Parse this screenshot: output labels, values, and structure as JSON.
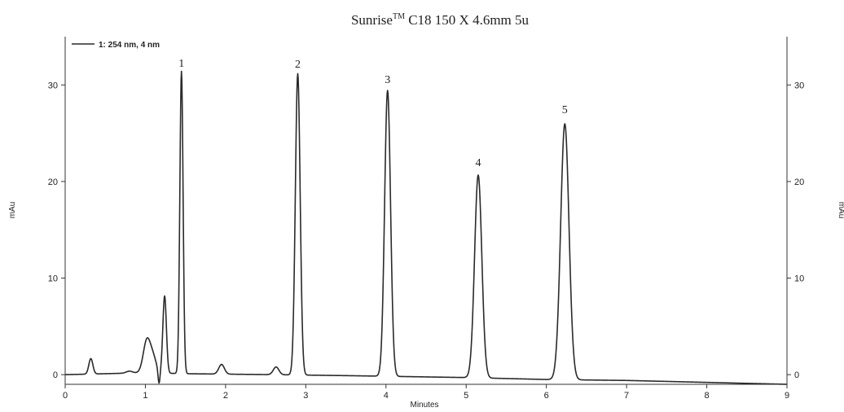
{
  "chart_data": {
    "type": "line",
    "title": {
      "main": "Sunrise",
      "superscript": "TM",
      "rest": " C18  150 X 4.6mm 5u"
    },
    "xlabel": "Minutes",
    "ylabel_left": "mAu",
    "ylabel_right": "mAu",
    "xlim": [
      0,
      9
    ],
    "ylim": [
      -1,
      35
    ],
    "x_ticks": [
      0,
      1,
      2,
      3,
      4,
      5,
      6,
      7,
      8,
      9
    ],
    "y_ticks_left": [
      0,
      10,
      20,
      30
    ],
    "y_ticks_right": [
      0,
      10,
      20,
      30
    ],
    "legend": {
      "position": "top-left",
      "label": "1: 254 nm, 4 nm"
    },
    "series": [
      {
        "name": "1: 254 nm, 4 nm",
        "baseline": [
          [
            0,
            0.0
          ],
          [
            1.0,
            0.2
          ],
          [
            1.5,
            0.1
          ],
          [
            2.6,
            0.0
          ],
          [
            3.5,
            -0.1
          ],
          [
            5.0,
            -0.3
          ],
          [
            6.0,
            -0.5
          ],
          [
            7.0,
            -0.6
          ],
          [
            8.0,
            -0.8
          ],
          [
            9.0,
            -1.0
          ]
        ],
        "peaks": [
          {
            "rt": 0.32,
            "height": 1.6,
            "width": 0.025
          },
          {
            "rt": 0.8,
            "height": 0.2,
            "width": 0.04
          },
          {
            "rt": 1.02,
            "height": 3.4,
            "width": 0.045
          },
          {
            "rt": 1.1,
            "height": 1.4,
            "width": 0.04
          },
          {
            "rt": 1.17,
            "height": -1.4,
            "width": 0.012
          },
          {
            "rt": 1.24,
            "height": 8.0,
            "width": 0.022
          },
          {
            "rt": 1.45,
            "height": 31.3,
            "width": 0.02
          },
          {
            "rt": 1.95,
            "height": 1.0,
            "width": 0.035
          },
          {
            "rt": 2.63,
            "height": 0.8,
            "width": 0.035
          },
          {
            "rt": 2.9,
            "height": 31.2,
            "width": 0.03
          },
          {
            "rt": 4.02,
            "height": 29.6,
            "width": 0.037
          },
          {
            "rt": 5.15,
            "height": 21.0,
            "width": 0.045
          },
          {
            "rt": 6.23,
            "height": 26.5,
            "width": 0.052
          }
        ]
      }
    ],
    "peak_labels": [
      {
        "text": "1",
        "x": 1.45,
        "y": 31.3
      },
      {
        "text": "2",
        "x": 2.9,
        "y": 31.2
      },
      {
        "text": "3",
        "x": 4.02,
        "y": 29.6
      },
      {
        "text": "4",
        "x": 5.15,
        "y": 21.0
      },
      {
        "text": "5",
        "x": 6.23,
        "y": 26.5
      }
    ]
  }
}
